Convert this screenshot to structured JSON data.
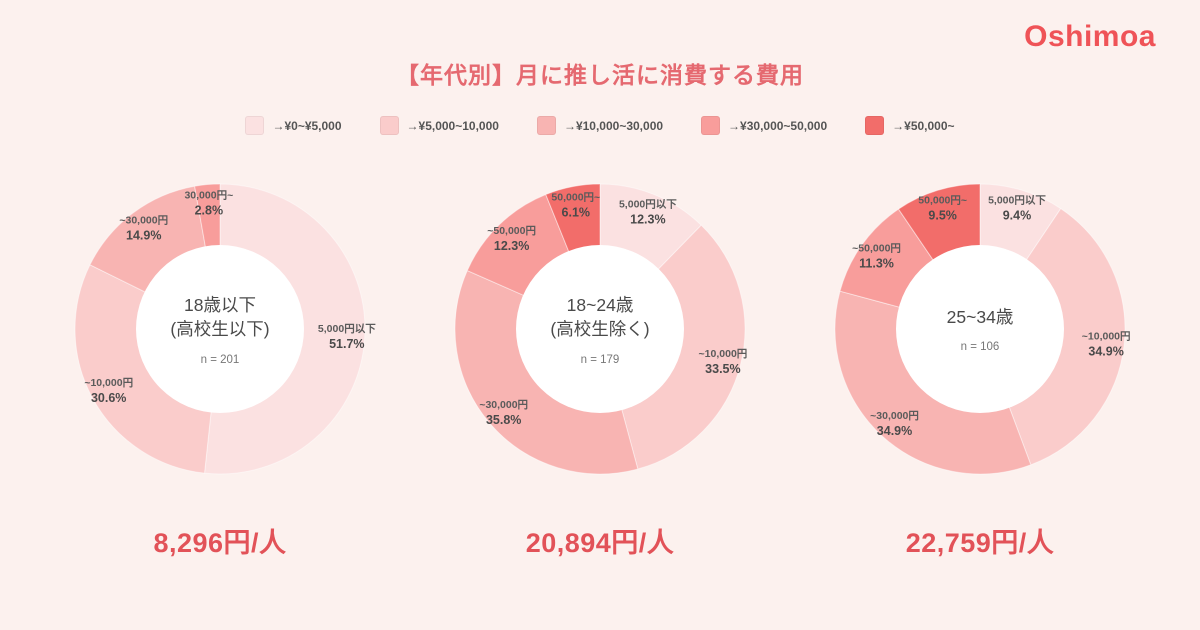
{
  "brand": "Oshimoa",
  "title": "【年代別】月に推し活に消費する費用",
  "palette": [
    "#FBE1E1",
    "#FACCCB",
    "#F8B4B2",
    "#F89D9B",
    "#F26D6A"
  ],
  "colors": {
    "background": "#FCF1EE",
    "title": "#E56970",
    "average": "#E25258",
    "brand": "#EF5357",
    "center_circle": "#FFFFFF"
  },
  "legend": [
    {
      "label": "→¥0~¥5,000",
      "color_index": 0
    },
    {
      "label": "→¥5,000~10,000",
      "color_index": 1
    },
    {
      "label": "→¥10,000~30,000",
      "color_index": 2
    },
    {
      "label": "→¥30,000~50,000",
      "color_index": 3
    },
    {
      "label": "→¥50,000~",
      "color_index": 4
    }
  ],
  "chart_data": [
    {
      "type": "pie",
      "donut": true,
      "center_title": [
        "18歳以下",
        "(高校生以下)"
      ],
      "n_label": "n = 201",
      "average": "8,296円/人",
      "slices": [
        {
          "label": "5,000円以下",
          "value": 51.7,
          "color_index": 0
        },
        {
          "label": "~10,000円",
          "value": 30.6,
          "color_index": 1
        },
        {
          "label": "~30,000円",
          "value": 14.9,
          "color_index": 2
        },
        {
          "label": "30,000円~",
          "value": 2.8,
          "color_index": 3
        }
      ]
    },
    {
      "type": "pie",
      "donut": true,
      "center_title": [
        "18~24歳",
        "(高校生除く)"
      ],
      "n_label": "n = 179",
      "average": "20,894円/人",
      "slices": [
        {
          "label": "5,000円以下",
          "value": 12.3,
          "color_index": 0
        },
        {
          "label": "~10,000円",
          "value": 33.5,
          "color_index": 1
        },
        {
          "label": "~30,000円",
          "value": 35.8,
          "color_index": 2
        },
        {
          "label": "~50,000円",
          "value": 12.3,
          "color_index": 3
        },
        {
          "label": "50,000円~",
          "value": 6.1,
          "color_index": 4
        }
      ]
    },
    {
      "type": "pie",
      "donut": true,
      "center_title": [
        "25~34歳"
      ],
      "n_label": "n = 106",
      "average": "22,759円/人",
      "slices": [
        {
          "label": "5,000円以下",
          "value": 9.4,
          "color_index": 0
        },
        {
          "label": "~10,000円",
          "value": 34.9,
          "color_index": 1
        },
        {
          "label": "~30,000円",
          "value": 34.9,
          "color_index": 2
        },
        {
          "label": "~50,000円",
          "value": 11.3,
          "color_index": 3
        },
        {
          "label": "50,000円~",
          "value": 9.5,
          "color_index": 4
        }
      ]
    }
  ]
}
